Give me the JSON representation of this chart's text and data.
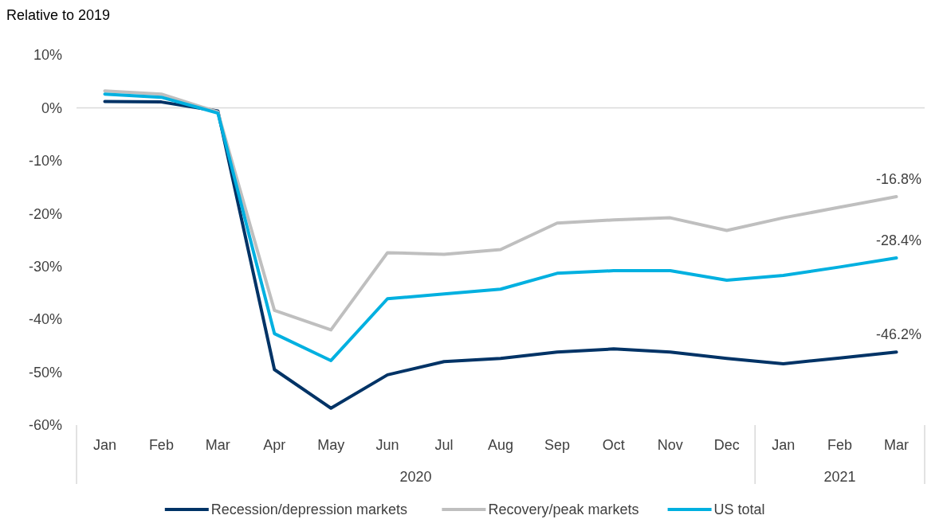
{
  "chart_data": {
    "type": "line",
    "ylabel": "Relative to 2019",
    "categories": [
      "Jan",
      "Feb",
      "Mar",
      "Apr",
      "May",
      "Jun",
      "Jul",
      "Aug",
      "Sep",
      "Oct",
      "Nov",
      "Dec",
      "Jan",
      "Feb",
      "Mar"
    ],
    "annotations": [
      "2020",
      "2021"
    ],
    "ylim": [
      -60,
      10
    ],
    "yticks": [
      {
        "value": 10,
        "label": "10%"
      },
      {
        "value": 0,
        "label": "0%"
      },
      {
        "value": -10,
        "label": "-10%"
      },
      {
        "value": -20,
        "label": "-20%"
      },
      {
        "value": -30,
        "label": "-30%"
      },
      {
        "value": -40,
        "label": "-40%"
      },
      {
        "value": -50,
        "label": "-50%"
      },
      {
        "value": -60,
        "label": "-60%"
      }
    ],
    "series": [
      {
        "name": "Recession/depression markets",
        "color": "#003366",
        "values": [
          1.2,
          1.1,
          -0.6,
          -49.5,
          -56.8,
          -50.5,
          -48,
          -47.4,
          -46.2,
          -45.6,
          -46.2,
          -47.4,
          -48.4,
          -47.3,
          -46.2
        ],
        "value_labels": [
          null,
          null,
          null,
          null,
          null,
          null,
          null,
          null,
          null,
          null,
          null,
          null,
          null,
          null,
          "-46.2%"
        ]
      },
      {
        "name": "Recovery/peak markets",
        "color": "#bfbfbf",
        "values": [
          3.2,
          2.6,
          -0.8,
          -38.3,
          -42,
          -27.4,
          -27.7,
          -26.8,
          -21.8,
          -21.2,
          -20.8,
          -23.2,
          -20.8,
          -18.8,
          -16.8
        ],
        "value_labels": [
          null,
          null,
          null,
          null,
          null,
          null,
          null,
          null,
          null,
          null,
          null,
          null,
          null,
          null,
          "-16.8%"
        ]
      },
      {
        "name": "US total",
        "color": "#00b0e0",
        "values": [
          2.6,
          2,
          -1,
          -42.7,
          -47.8,
          -36.1,
          -35.2,
          -34.3,
          -31.3,
          -30.8,
          -30.8,
          -32.6,
          -31.7,
          -30.1,
          -28.4
        ],
        "value_labels": [
          null,
          null,
          null,
          null,
          null,
          null,
          null,
          null,
          null,
          null,
          null,
          null,
          null,
          null,
          "-28.4%"
        ]
      }
    ],
    "ref_lines": [
      {
        "axis": "y",
        "value": 0,
        "color": "#d9d9d9"
      }
    ],
    "grid": false,
    "legend": "bottom",
    "line_style": "solid",
    "marker": "none"
  }
}
